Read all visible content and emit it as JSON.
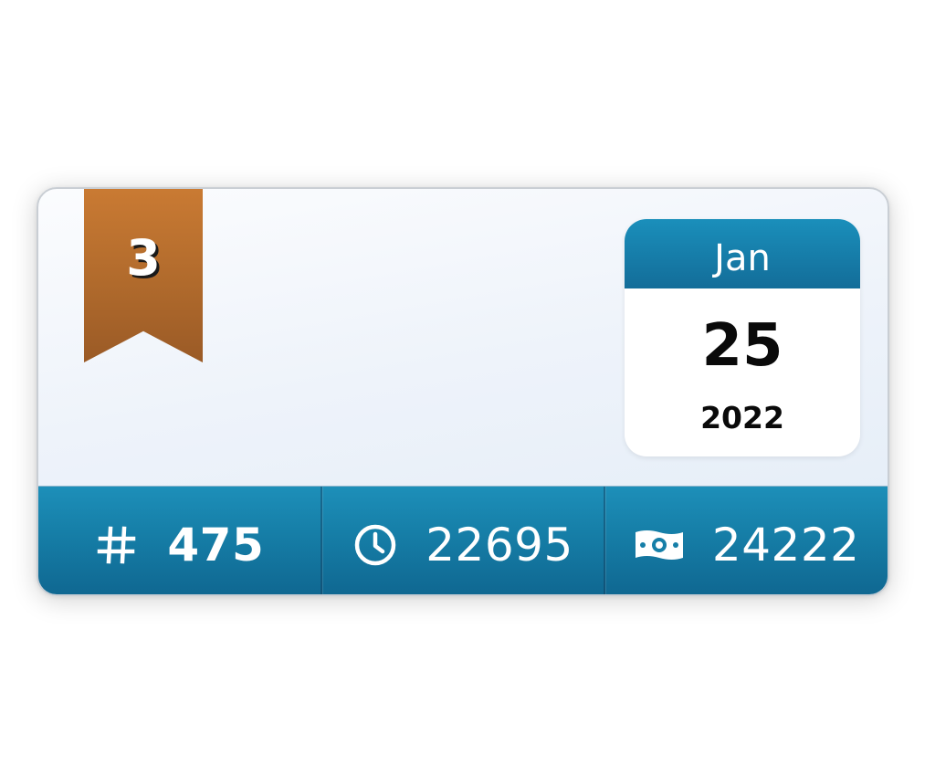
{
  "rank": {
    "number": "3",
    "ribbon_color": "#b06a2c"
  },
  "date": {
    "month": "Jan",
    "day": "25",
    "year": "2022",
    "header_color": "#1a8fbb"
  },
  "stats": [
    {
      "icon": "hash-icon",
      "value": "475"
    },
    {
      "icon": "clock-icon",
      "value": "22695"
    },
    {
      "icon": "money-bill-icon",
      "value": "24222"
    }
  ],
  "colors": {
    "bar": "#167fa8",
    "card_background": "#eef3fa"
  }
}
